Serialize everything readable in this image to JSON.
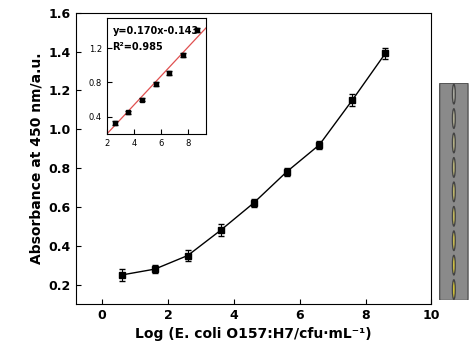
{
  "chart_data": [
    {
      "type": "line",
      "x_label": "Log (E. coli O157:H7/cfu·mL⁻¹)",
      "y_label": "Absorbance at 450 nm/a.u.",
      "xlim": [
        -0.8,
        10
      ],
      "xticks": [
        0,
        2,
        4,
        6,
        8,
        10
      ],
      "ylim": [
        0.1,
        1.6
      ],
      "yticks": [
        0.2,
        0.4,
        0.6,
        0.8,
        1.0,
        1.2,
        1.4,
        1.6
      ],
      "x": [
        0.6,
        1.6,
        2.6,
        3.6,
        4.6,
        5.6,
        6.6,
        7.6,
        8.6
      ],
      "series": [
        {
          "color": "#000000",
          "marker": "square",
          "line_style": "solid",
          "values": [
            0.25,
            0.28,
            0.35,
            0.48,
            0.62,
            0.78,
            0.92,
            1.15,
            1.39
          ],
          "error": [
            0.03,
            0.02,
            0.03,
            0.03,
            0.02,
            0.02,
            0.02,
            0.03,
            0.03
          ]
        }
      ]
    },
    {
      "type": "scatter",
      "annotations": [
        "y=0.170x-0.143",
        "R²=0.985"
      ],
      "xlim": [
        2,
        9.3
      ],
      "xticks": [
        2,
        4,
        6,
        8
      ],
      "ylim": [
        0.2,
        1.55
      ],
      "yticks": [
        0.4,
        0.8,
        1.2
      ],
      "x": [
        2.6,
        3.6,
        4.6,
        5.6,
        6.6,
        7.6,
        8.6
      ],
      "series": [
        {
          "color": "#000000",
          "marker": "square",
          "values": [
            0.33,
            0.45,
            0.6,
            0.78,
            0.91,
            1.12,
            1.41
          ],
          "error": [
            0.02,
            0.02,
            0.02,
            0.02,
            0.02,
            0.02,
            0.02
          ]
        }
      ],
      "fit": {
        "slope": 0.17,
        "intercept": -0.143,
        "color": "#e05050"
      }
    }
  ]
}
